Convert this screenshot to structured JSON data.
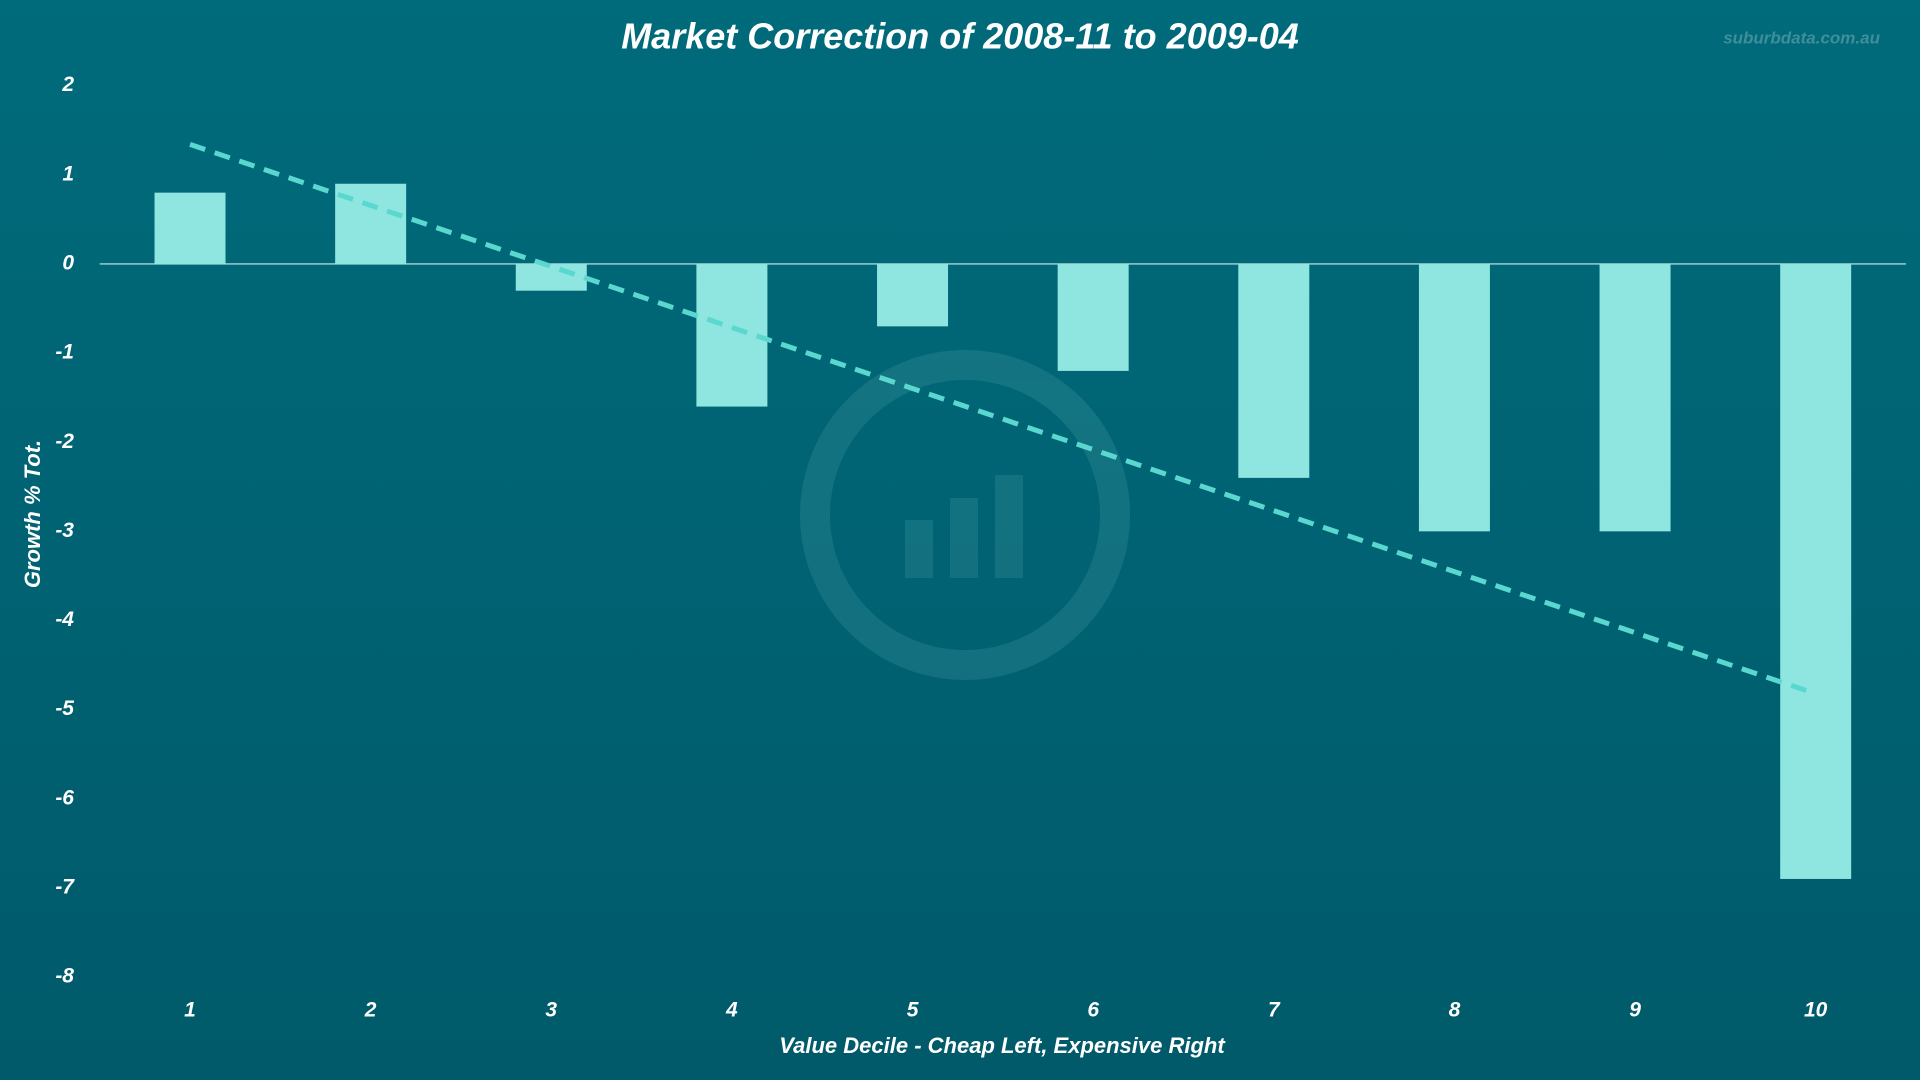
{
  "chart_data": {
    "type": "bar",
    "title": "Market Correction of 2008-11 to 2009-04",
    "watermark": "suburbdata.com.au",
    "x_label": "Value Decile - Cheap Left, Expensive Right",
    "y_label": "Growth % Tot.",
    "categories": [
      "1",
      "2",
      "3",
      "4",
      "5",
      "6",
      "7",
      "8",
      "9",
      "10"
    ],
    "values": [
      0.8,
      0.9,
      -0.3,
      -1.6,
      -0.7,
      -1.2,
      -2.4,
      -3.0,
      -3.0,
      -6.9
    ],
    "color": "#8fe5df",
    "trendline": "linear",
    "trendline_color": "#5ad8d0",
    "ylim": [
      -8,
      2
    ],
    "yticks": [
      -8,
      -7,
      -6,
      -5,
      -4,
      -3,
      -2,
      -1,
      0,
      1,
      2
    ],
    "grid": false
  }
}
